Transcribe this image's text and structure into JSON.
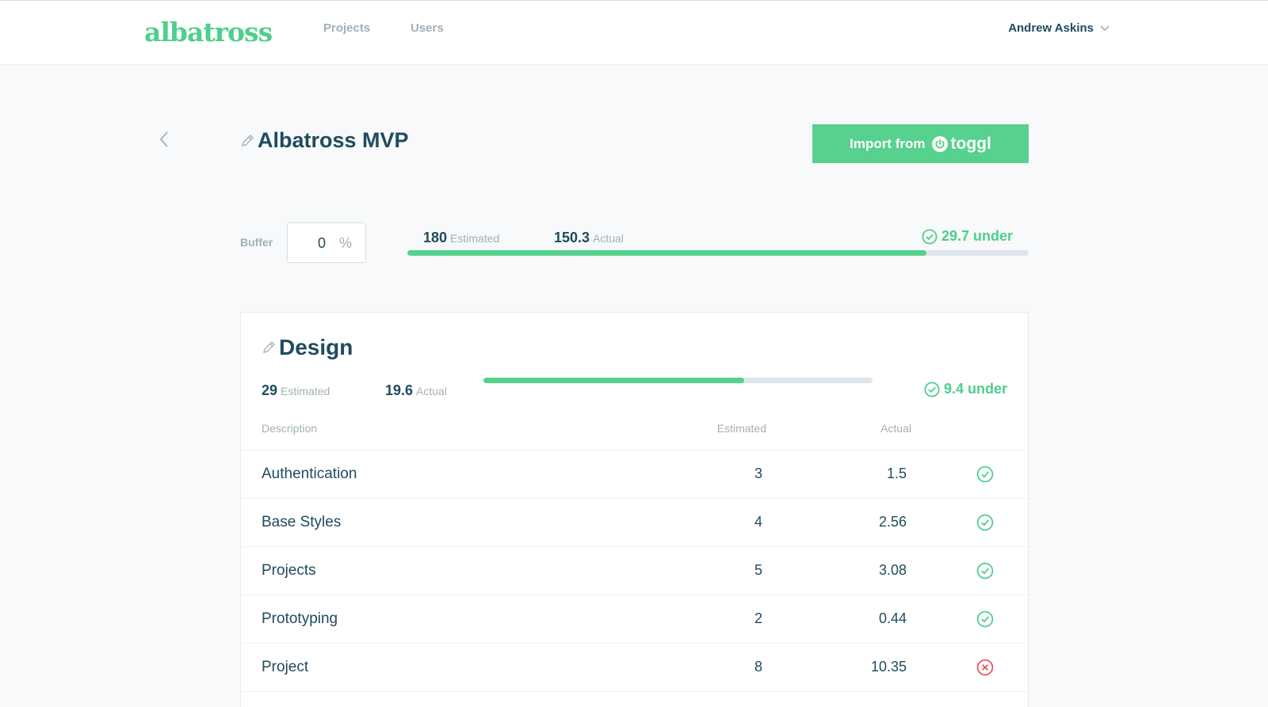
{
  "brand": {
    "logo": "albatross"
  },
  "nav": {
    "items": [
      {
        "label": "Projects"
      },
      {
        "label": "Users"
      }
    ]
  },
  "user": {
    "name": "Andrew Askins"
  },
  "project": {
    "title": "Albatross MVP",
    "import_button": {
      "label": "Import from",
      "service": "toggl"
    }
  },
  "buffer": {
    "label": "Buffer",
    "value": "0",
    "unit": "%"
  },
  "totals": {
    "estimated": "180",
    "estimated_label": "Estimated",
    "actual": "150.3",
    "actual_label": "Actual",
    "status": "29.7 under",
    "progress_fraction": 0.835
  },
  "section": {
    "title": "Design",
    "estimated": "29",
    "estimated_label": "Estimated",
    "actual": "19.6",
    "actual_label": "Actual",
    "status": "9.4 under",
    "progress_fraction": 0.67,
    "columns": {
      "description": "Description",
      "estimated": "Estimated",
      "actual": "Actual"
    },
    "rows": [
      {
        "description": "Authentication",
        "estimated": "3",
        "actual": "1.5",
        "status": "check-circle-icon"
      },
      {
        "description": "Base Styles",
        "estimated": "4",
        "actual": "2.56",
        "status": "check-circle-icon"
      },
      {
        "description": "Projects",
        "estimated": "5",
        "actual": "3.08",
        "status": "check-circle-icon"
      },
      {
        "description": "Prototyping",
        "estimated": "2",
        "actual": "0.44",
        "status": "check-circle-icon"
      },
      {
        "description": "Project",
        "estimated": "8",
        "actual": "10.35",
        "status": "x-circle-icon"
      }
    ]
  },
  "colors": {
    "accent": "#56d18e",
    "danger": "#e25563",
    "text": "#1f4b5e",
    "muted": "#a3afb7"
  },
  "icons": [
    "pencil-icon",
    "chevron-left-icon",
    "chevron-down-icon",
    "power-icon",
    "check-circle-icon",
    "x-circle-icon"
  ]
}
